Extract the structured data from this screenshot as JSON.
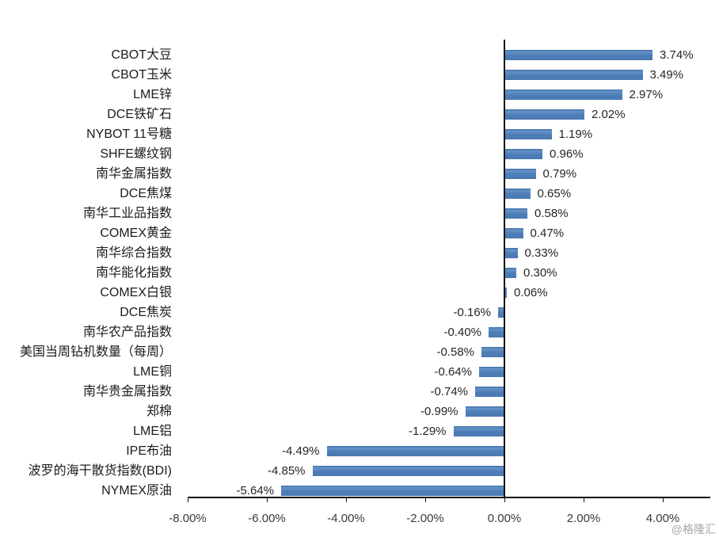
{
  "watermark": "@格隆汇",
  "chart_data": {
    "type": "bar",
    "orientation": "horizontal",
    "title": "",
    "xlabel": "",
    "ylabel": "",
    "grid": false,
    "legend": null,
    "bar_color": "#4d7db8",
    "axis_color": "#141414",
    "xlim": [
      -8,
      5.2
    ],
    "x_ticks": [
      {
        "value": -8,
        "label": "-8.00%"
      },
      {
        "value": -6,
        "label": "-6.00%"
      },
      {
        "value": -4,
        "label": "-4.00%"
      },
      {
        "value": -2,
        "label": "-2.00%"
      },
      {
        "value": 0,
        "label": "0.00%"
      },
      {
        "value": 2,
        "label": "2.00%"
      },
      {
        "value": 4,
        "label": "4.00%"
      }
    ],
    "categories": [
      "CBOT大豆",
      "CBOT玉米",
      "LME锌",
      "DCE铁矿石",
      "NYBOT 11号糖",
      "SHFE螺纹钢",
      "南华金属指数",
      "DCE焦煤",
      "南华工业品指数",
      "COMEX黄金",
      "南华综合指数",
      "南华能化指数",
      "COMEX白银",
      "DCE焦炭",
      "南华农产品指数",
      "美国当周钻机数量（每周）",
      "LME铜",
      "南华贵金属指数",
      "郑棉",
      "LME铝",
      "IPE布油",
      "波罗的海干散货指数(BDI)",
      "NYMEX原油"
    ],
    "values": [
      3.74,
      3.49,
      2.97,
      2.02,
      1.19,
      0.96,
      0.79,
      0.65,
      0.58,
      0.47,
      0.33,
      0.3,
      0.06,
      -0.16,
      -0.4,
      -0.58,
      -0.64,
      -0.74,
      -0.99,
      -1.29,
      -4.49,
      -4.85,
      -5.64
    ],
    "value_labels": [
      "3.74%",
      "3.49%",
      "2.97%",
      "2.02%",
      "1.19%",
      "0.96%",
      "0.79%",
      "0.65%",
      "0.58%",
      "0.47%",
      "0.33%",
      "0.30%",
      "0.06%",
      "-0.16%",
      "-0.40%",
      "-0.58%",
      "-0.64%",
      "-0.74%",
      "-0.99%",
      "-1.29%",
      "-4.49%",
      "-4.85%",
      "-5.64%"
    ]
  }
}
